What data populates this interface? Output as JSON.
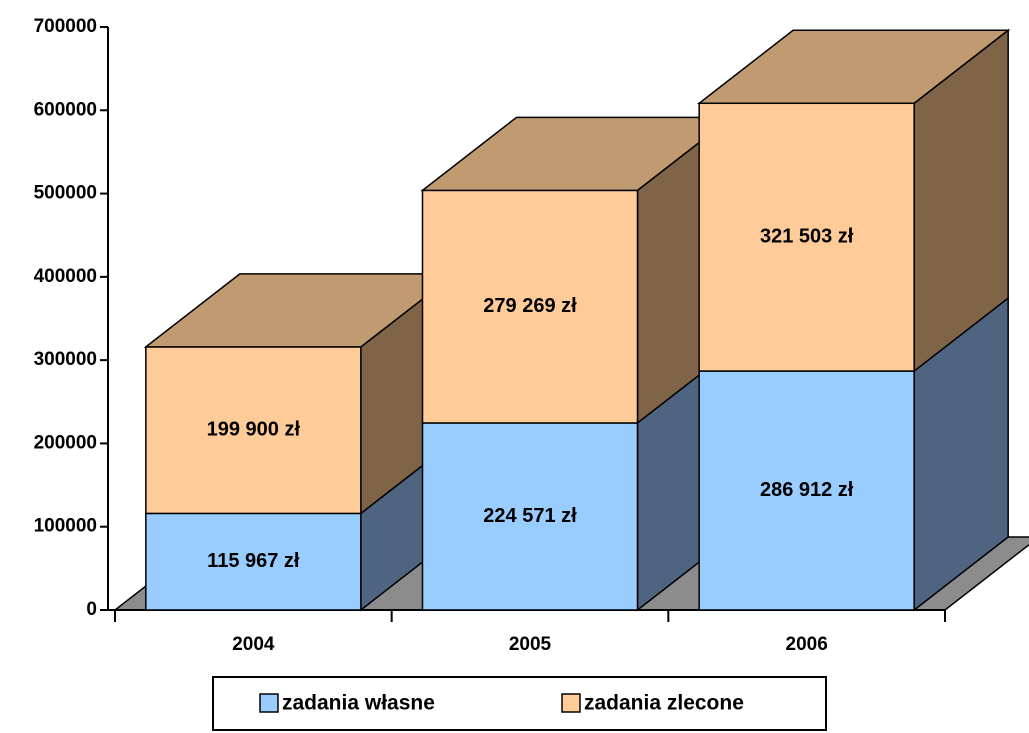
{
  "chart_data": {
    "type": "bar3d_stacked",
    "categories": [
      "2004",
      "2005",
      "2006"
    ],
    "series": [
      {
        "name": "zadania własne",
        "color": "#99ccff",
        "side": "#4f6480",
        "values": [
          115967,
          224571,
          286912
        ],
        "value_labels": [
          "115 967 zł",
          "224 571 zł",
          "286 912 zł"
        ]
      },
      {
        "name": "zadania zlecone",
        "color": "#ffcc99",
        "side": "#7f6448",
        "top": "#c09a70",
        "values": [
          199900,
          279269,
          321503
        ],
        "value_labels": [
          "199 900 zł",
          "279 269 zł",
          "321 503 zł"
        ]
      }
    ],
    "ylim": [
      0,
      700000
    ],
    "yticks": [
      0,
      100000,
      200000,
      300000,
      400000,
      500000,
      600000,
      700000
    ]
  }
}
